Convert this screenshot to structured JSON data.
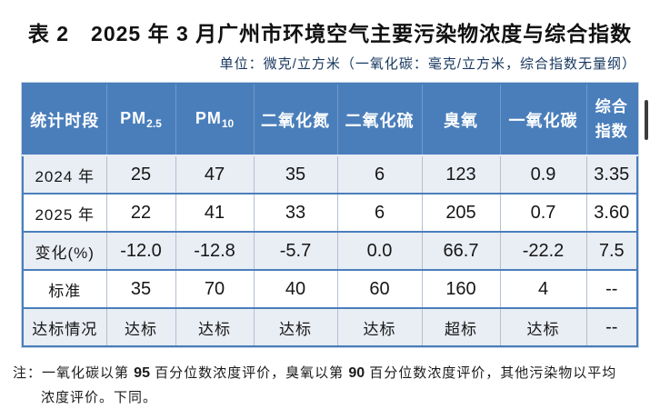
{
  "title": "表 2　2025 年 3 月广州市环境空气主要污染物浓度与综合指数",
  "unit_line": "单位：微克/立方米（一氧化碳：毫克/立方米，综合指数无量纲）",
  "table": {
    "header": {
      "col_period": "统计时段",
      "col_pm25_base": "PM",
      "col_pm25_sub": "2.5",
      "col_pm10_base": "PM",
      "col_pm10_sub": "10",
      "col_no2": "二氧化氮",
      "col_so2": "二氧化硫",
      "col_o3": "臭氧",
      "col_co": "一氧化碳",
      "col_index_line1": "综合",
      "col_index_line2": "指数"
    },
    "rows": [
      {
        "label": "2024 年",
        "values": [
          "25",
          "47",
          "35",
          "6",
          "123",
          "0.9",
          "3.35"
        ]
      },
      {
        "label": "2025 年",
        "values": [
          "22",
          "41",
          "33",
          "6",
          "205",
          "0.7",
          "3.60"
        ]
      },
      {
        "label": "变化(%)",
        "values": [
          "-12.0",
          "-12.8",
          "-5.7",
          "0.0",
          "66.7",
          "-22.2",
          "7.5"
        ]
      },
      {
        "label": "标准",
        "values": [
          "35",
          "70",
          "40",
          "60",
          "160",
          "4",
          "--"
        ]
      },
      {
        "label": "达标情况",
        "values": [
          "达标",
          "达标",
          "达标",
          "达标",
          "超标",
          "达标",
          "--"
        ]
      }
    ]
  },
  "note": {
    "prefix": "注：一氧化碳以第 ",
    "percentile_co": "95",
    "middle": " 百分位数浓度评价，臭氧以第 ",
    "percentile_o3": "90",
    "suffix": " 百分位数浓度评价，其他污染物以平均",
    "line2": "浓度评价。下同。"
  },
  "colors": {
    "header_bg": "#4a7ebb",
    "row_alt_bg": "#e9edf4",
    "border_blue": "#4a7ebb",
    "border_light": "#b3c0d2",
    "subtitle_text": "#17375e"
  }
}
